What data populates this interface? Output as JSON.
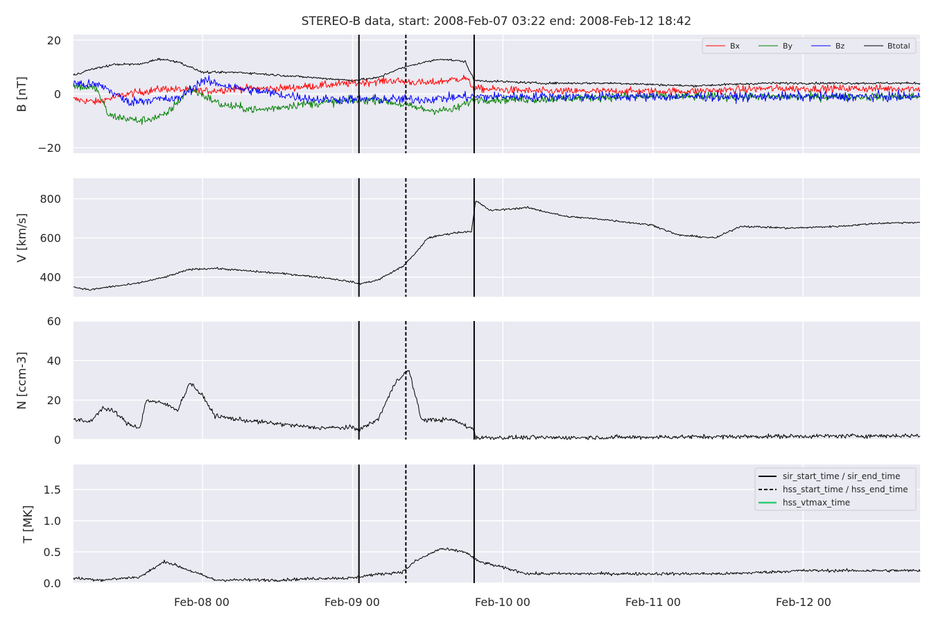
{
  "title": "STEREO-B data, start: 2008-Feb-07 03:22  end: 2008-Feb-12 18:42",
  "colors": {
    "panel_bg": "#eaeaf2",
    "grid": "#ffffff",
    "Bx": "#ff0000",
    "By": "#008000",
    "Bz": "#0000ff",
    "Btotal": "#000000",
    "hss_vtmax": "#2ecc71"
  },
  "chart_data": {
    "type": "line",
    "x_axis": {
      "range": [
        "2008-02-07 03:22",
        "2008-02-12 18:42"
      ],
      "tick_values": [
        "2008-02-08 00:00",
        "2008-02-09 00:00",
        "2008-02-10 00:00",
        "2008-02-11 00:00",
        "2008-02-12 00:00"
      ],
      "tick_labels": [
        "Feb-08 00",
        "Feb-09 00",
        "Feb-10 00",
        "Feb-11 00",
        "Feb-12 00"
      ]
    },
    "event_lines": {
      "sir_start_time": "2008-02-09 01:00",
      "hss_start_time": "2008-02-09 08:30",
      "sir_end_time": "2008-02-09 19:25",
      "hss_end_time": "2008-02-09 19:25"
    },
    "legend_event_lines": [
      {
        "label": "sir_start_time / sir_end_time",
        "style": "solid",
        "color": "#000000"
      },
      {
        "label": "hss_start_time / hss_end_time",
        "style": "dashed",
        "color": "#000000"
      },
      {
        "label": "hss_vtmax_time",
        "style": "solid",
        "color": "#2ecc71"
      }
    ],
    "panels": [
      {
        "id": "B",
        "ylabel": "B [nT]",
        "ylim": [
          -22,
          22
        ],
        "yticks": [
          -20,
          0,
          20
        ],
        "ytick_labels": [
          "−20",
          "0",
          "20"
        ],
        "legend": [
          "Bx",
          "By",
          "Bz",
          "Btotal"
        ],
        "series": [
          {
            "name": "Bx",
            "color": "#ff0000",
            "noise": 2.0,
            "points": [
              [
                "2008-02-07 03:22",
                -2
              ],
              [
                "2008-02-07 07:00",
                -3
              ],
              [
                "2008-02-07 12:00",
                0
              ],
              [
                "2008-02-07 18:00",
                2
              ],
              [
                "2008-02-08 00:00",
                1
              ],
              [
                "2008-02-08 06:00",
                2
              ],
              [
                "2008-02-08 12:00",
                2
              ],
              [
                "2008-02-08 18:00",
                3
              ],
              [
                "2008-02-09 00:00",
                4
              ],
              [
                "2008-02-09 06:00",
                5
              ],
              [
                "2008-02-09 12:00",
                4
              ],
              [
                "2008-02-09 18:00",
                6
              ],
              [
                "2008-02-09 19:25",
                2
              ],
              [
                "2008-02-10 06:00",
                1
              ],
              [
                "2008-02-10 18:00",
                1
              ],
              [
                "2008-02-11 06:00",
                1
              ],
              [
                "2008-02-11 18:00",
                2
              ],
              [
                "2008-02-12 06:00",
                2
              ],
              [
                "2008-02-12 18:42",
                2
              ]
            ]
          },
          {
            "name": "By",
            "color": "#008000",
            "noise": 2.2,
            "points": [
              [
                "2008-02-07 03:22",
                3
              ],
              [
                "2008-02-07 07:00",
                2
              ],
              [
                "2008-02-07 09:00",
                -8
              ],
              [
                "2008-02-07 14:00",
                -10
              ],
              [
                "2008-02-07 18:00",
                -8
              ],
              [
                "2008-02-07 22:00",
                2
              ],
              [
                "2008-02-08 03:00",
                -4
              ],
              [
                "2008-02-08 09:00",
                -6
              ],
              [
                "2008-02-08 15:00",
                -4
              ],
              [
                "2008-02-08 21:00",
                -3
              ],
              [
                "2008-02-09 04:00",
                -2
              ],
              [
                "2008-02-09 08:00",
                -4
              ],
              [
                "2008-02-09 12:00",
                -6
              ],
              [
                "2008-02-09 16:00",
                -6
              ],
              [
                "2008-02-09 19:25",
                -2
              ],
              [
                "2008-02-10 06:00",
                -2
              ],
              [
                "2008-02-10 18:00",
                -1
              ],
              [
                "2008-02-11 06:00",
                -1
              ],
              [
                "2008-02-11 18:00",
                -1
              ],
              [
                "2008-02-12 06:00",
                -1
              ],
              [
                "2008-02-12 18:42",
                -1
              ]
            ]
          },
          {
            "name": "Bz",
            "color": "#0000ff",
            "noise": 2.5,
            "points": [
              [
                "2008-02-07 03:22",
                4
              ],
              [
                "2008-02-07 08:00",
                3
              ],
              [
                "2008-02-07 12:00",
                -3
              ],
              [
                "2008-02-07 16:00",
                -2
              ],
              [
                "2008-02-07 20:00",
                -2
              ],
              [
                "2008-02-08 00:00",
                5
              ],
              [
                "2008-02-08 06:00",
                2
              ],
              [
                "2008-02-08 12:00",
                0
              ],
              [
                "2008-02-08 18:00",
                -2
              ],
              [
                "2008-02-09 00:00",
                -2
              ],
              [
                "2008-02-09 06:00",
                -2
              ],
              [
                "2008-02-09 12:00",
                -2
              ],
              [
                "2008-02-09 18:00",
                -1
              ],
              [
                "2008-02-09 19:25",
                -1
              ],
              [
                "2008-02-10 06:00",
                -1
              ],
              [
                "2008-02-10 18:00",
                -1
              ],
              [
                "2008-02-11 06:00",
                -1
              ],
              [
                "2008-02-11 18:00",
                -1
              ],
              [
                "2008-02-12 06:00",
                -1
              ],
              [
                "2008-02-12 18:42",
                -1
              ]
            ]
          },
          {
            "name": "Btotal",
            "color": "#000000",
            "noise": 0.6,
            "points": [
              [
                "2008-02-07 03:22",
                7
              ],
              [
                "2008-02-07 06:00",
                9
              ],
              [
                "2008-02-07 10:00",
                11
              ],
              [
                "2008-02-07 14:00",
                11
              ],
              [
                "2008-02-07 17:00",
                13
              ],
              [
                "2008-02-07 20:00",
                12
              ],
              [
                "2008-02-08 00:00",
                8
              ],
              [
                "2008-02-08 06:00",
                8
              ],
              [
                "2008-02-08 12:00",
                7
              ],
              [
                "2008-02-08 18:00",
                6
              ],
              [
                "2008-02-09 00:00",
                5
              ],
              [
                "2008-02-09 04:00",
                6
              ],
              [
                "2008-02-09 07:00",
                9
              ],
              [
                "2008-02-09 10:00",
                11
              ],
              [
                "2008-02-09 14:00",
                13
              ],
              [
                "2008-02-09 18:00",
                12
              ],
              [
                "2008-02-09 19:25",
                5
              ],
              [
                "2008-02-10 06:00",
                4
              ],
              [
                "2008-02-10 18:00",
                4
              ],
              [
                "2008-02-11 06:00",
                3
              ],
              [
                "2008-02-11 18:00",
                4
              ],
              [
                "2008-02-12 06:00",
                4
              ],
              [
                "2008-02-12 18:42",
                4
              ]
            ]
          }
        ]
      },
      {
        "id": "V",
        "ylabel": "V [km/s]",
        "ylim": [
          300,
          905
        ],
        "yticks": [
          400,
          600,
          800
        ],
        "ytick_labels": [
          "400",
          "600",
          "800"
        ],
        "series": [
          {
            "name": "V",
            "color": "#000000",
            "noise": 7,
            "points": [
              [
                "2008-02-07 03:22",
                350
              ],
              [
                "2008-02-07 06:00",
                335
              ],
              [
                "2008-02-07 09:00",
                350
              ],
              [
                "2008-02-07 13:00",
                365
              ],
              [
                "2008-02-07 18:00",
                400
              ],
              [
                "2008-02-07 22:00",
                440
              ],
              [
                "2008-02-08 02:00",
                445
              ],
              [
                "2008-02-08 08:00",
                430
              ],
              [
                "2008-02-08 14:00",
                415
              ],
              [
                "2008-02-08 20:00",
                395
              ],
              [
                "2008-02-09 00:00",
                375
              ],
              [
                "2008-02-09 01:00",
                365
              ],
              [
                "2008-02-09 04:00",
                385
              ],
              [
                "2008-02-09 08:00",
                455
              ],
              [
                "2008-02-09 10:00",
                520
              ],
              [
                "2008-02-09 12:00",
                600
              ],
              [
                "2008-02-09 16:00",
                625
              ],
              [
                "2008-02-09 19:00",
                635
              ],
              [
                "2008-02-09 19:40",
                790
              ],
              [
                "2008-02-09 22:00",
                740
              ],
              [
                "2008-02-10 04:00",
                755
              ],
              [
                "2008-02-10 10:00",
                710
              ],
              [
                "2008-02-10 16:00",
                695
              ],
              [
                "2008-02-11 00:00",
                665
              ],
              [
                "2008-02-11 04:00",
                615
              ],
              [
                "2008-02-11 10:00",
                600
              ],
              [
                "2008-02-11 14:00",
                660
              ],
              [
                "2008-02-11 22:00",
                650
              ],
              [
                "2008-02-12 06:00",
                660
              ],
              [
                "2008-02-12 12:00",
                675
              ],
              [
                "2008-02-12 18:42",
                680
              ]
            ]
          }
        ]
      },
      {
        "id": "N",
        "ylabel": "N [ccm-3]",
        "ylim": [
          0,
          60
        ],
        "yticks": [
          0,
          20,
          40,
          60
        ],
        "ytick_labels": [
          "0",
          "20",
          "40",
          "60"
        ],
        "series": [
          {
            "name": "N",
            "color": "#000000",
            "noise": 1.6,
            "points": [
              [
                "2008-02-07 03:22",
                10
              ],
              [
                "2008-02-07 06:00",
                9
              ],
              [
                "2008-02-07 08:00",
                16
              ],
              [
                "2008-02-07 10:00",
                14
              ],
              [
                "2008-02-07 12:00",
                8
              ],
              [
                "2008-02-07 14:00",
                6
              ],
              [
                "2008-02-07 15:00",
                20
              ],
              [
                "2008-02-07 18:00",
                18
              ],
              [
                "2008-02-07 20:00",
                15
              ],
              [
                "2008-02-07 22:00",
                29
              ],
              [
                "2008-02-08 00:00",
                22
              ],
              [
                "2008-02-08 02:00",
                12
              ],
              [
                "2008-02-08 06:00",
                10
              ],
              [
                "2008-02-08 12:00",
                8
              ],
              [
                "2008-02-08 18:00",
                6
              ],
              [
                "2008-02-09 00:00",
                6
              ],
              [
                "2008-02-09 01:00",
                5
              ],
              [
                "2008-02-09 04:00",
                10
              ],
              [
                "2008-02-09 07:00",
                30
              ],
              [
                "2008-02-09 09:00",
                35
              ],
              [
                "2008-02-09 11:00",
                10
              ],
              [
                "2008-02-09 16:00",
                10
              ],
              [
                "2008-02-09 19:25",
                5
              ],
              [
                "2008-02-09 19:40",
                1
              ],
              [
                "2008-02-10 12:00",
                1
              ],
              [
                "2008-02-11 12:00",
                1.5
              ],
              [
                "2008-02-12 18:42",
                2
              ]
            ]
          }
        ]
      },
      {
        "id": "T",
        "ylabel": "T [MK]",
        "ylim": [
          0,
          1.9
        ],
        "yticks": [
          0.0,
          0.5,
          1.0,
          1.5
        ],
        "ytick_labels": [
          "0.0",
          "0.5",
          "1.0",
          "1.5"
        ],
        "series": [
          {
            "name": "T",
            "color": "#000000",
            "noise": 0.035,
            "points": [
              [
                "2008-02-07 03:22",
                0.08
              ],
              [
                "2008-02-07 08:00",
                0.05
              ],
              [
                "2008-02-07 14:00",
                0.1
              ],
              [
                "2008-02-07 18:00",
                0.35
              ],
              [
                "2008-02-07 22:00",
                0.2
              ],
              [
                "2008-02-08 02:00",
                0.05
              ],
              [
                "2008-02-08 12:00",
                0.05
              ],
              [
                "2008-02-08 20:00",
                0.08
              ],
              [
                "2008-02-09 00:00",
                0.08
              ],
              [
                "2008-02-09 02:00",
                0.12
              ],
              [
                "2008-02-09 08:00",
                0.18
              ],
              [
                "2008-02-09 10:00",
                0.35
              ],
              [
                "2008-02-09 14:00",
                0.55
              ],
              [
                "2008-02-09 18:00",
                0.5
              ],
              [
                "2008-02-09 20:00",
                0.35
              ],
              [
                "2008-02-10 00:00",
                0.25
              ],
              [
                "2008-02-10 04:00",
                0.15
              ],
              [
                "2008-02-10 12:00",
                0.15
              ],
              [
                "2008-02-11 00:00",
                0.15
              ],
              [
                "2008-02-11 12:00",
                0.15
              ],
              [
                "2008-02-12 00:00",
                0.2
              ],
              [
                "2008-02-12 18:42",
                0.2
              ]
            ]
          }
        ]
      }
    ]
  }
}
